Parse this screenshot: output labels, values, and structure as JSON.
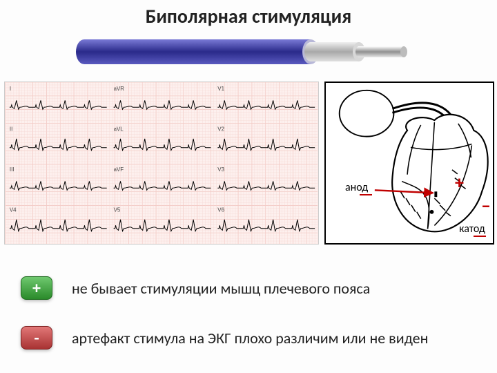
{
  "title": "Биполярная стимуляция",
  "lead": {
    "outer_color": "#3a3a9e",
    "inner_core": "#c9c9c9",
    "tip_color": "#d0d0d0"
  },
  "ecg": {
    "bg": "#fdf0ee",
    "grid_minor": "#f5d6d2",
    "grid_major": "#eeb3ac",
    "trace_color": "#000000",
    "rows": 4,
    "cols": 3,
    "lead_labels": [
      "I",
      "aVR",
      "V1",
      "II",
      "aVL",
      "V2",
      "III",
      "aVF",
      "V3",
      "V4",
      "V5",
      "V6"
    ],
    "label_fontsize": 8
  },
  "heart": {
    "stroke": "#000000",
    "arrow_color": "#c00000",
    "anode_label": "анод",
    "cathode_label": "катод",
    "plus": "+",
    "minus": "–"
  },
  "rows": [
    {
      "sign": "+",
      "text": "не бывает стимуляции мышц плечевого пояса"
    },
    {
      "sign": "-",
      "text": "артефакт стимула на ЭКГ плохо различим или не виден"
    }
  ]
}
